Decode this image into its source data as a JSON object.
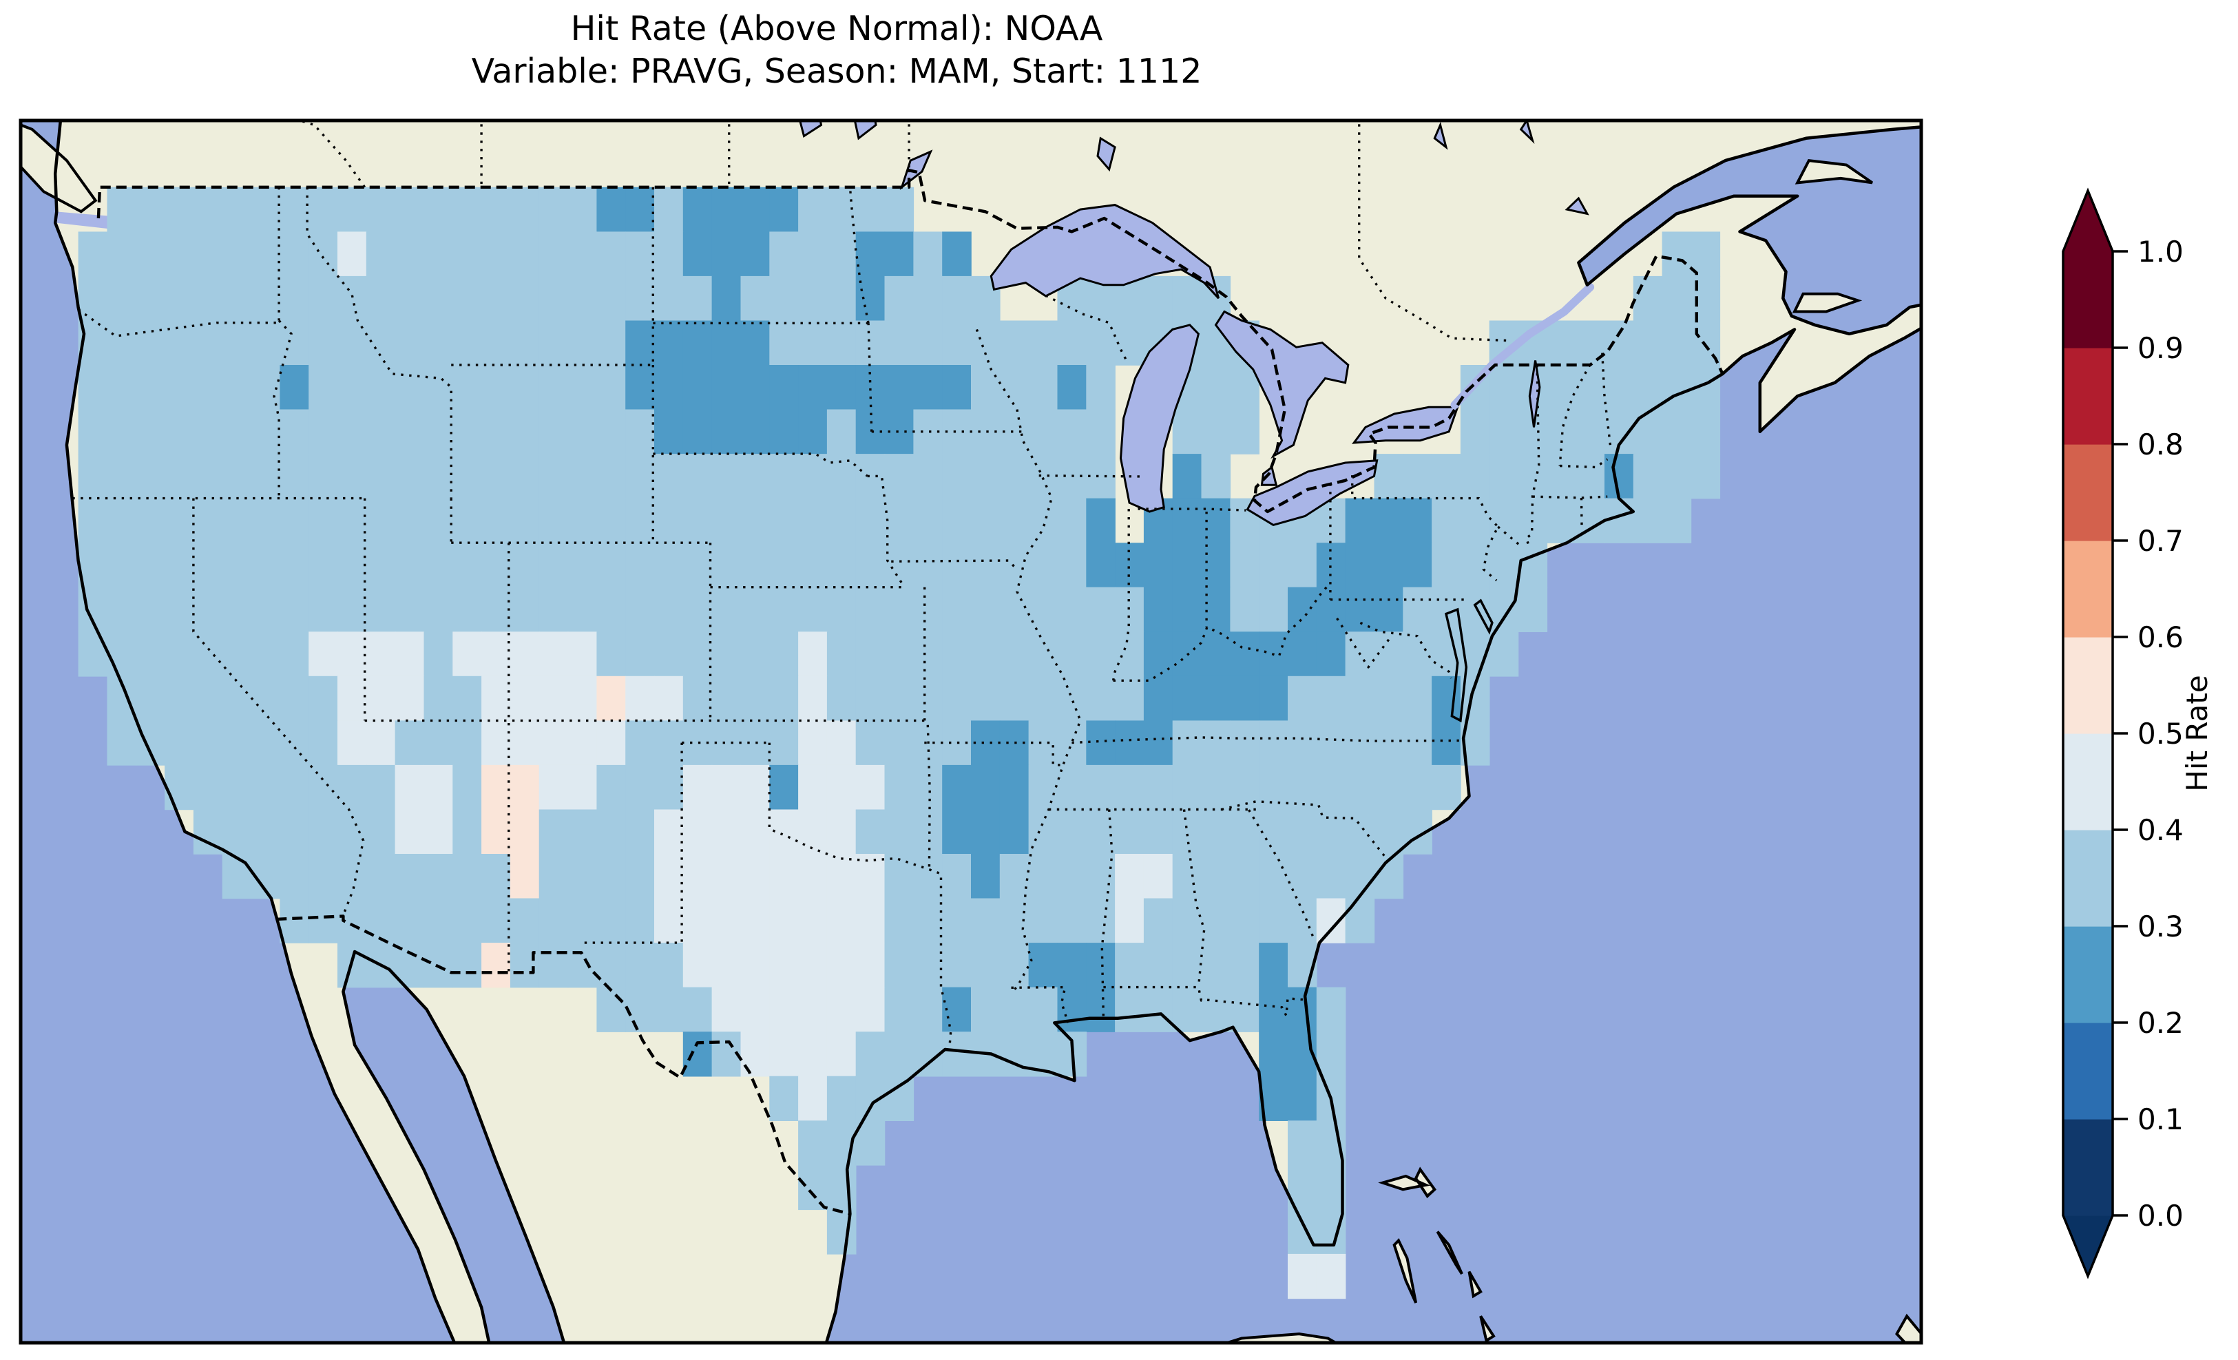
{
  "title": {
    "line1": "Hit Rate (Above Normal): NOAA",
    "line2": "Variable: PRAVG, Season: MAM, Start: 1112"
  },
  "colorbar": {
    "label": "Hit Rate",
    "ticks_top_to_bottom": [
      "1.0",
      "0.9",
      "0.8",
      "0.7",
      "0.6",
      "0.5",
      "0.4",
      "0.3",
      "0.2",
      "0.1",
      "0.0"
    ],
    "bins_low_to_high": [
      {
        "range": "0.0-0.1",
        "color": "#10386b"
      },
      {
        "range": "0.1-0.2",
        "color": "#2b6eb1"
      },
      {
        "range": "0.2-0.3",
        "color": "#4f9bc7"
      },
      {
        "range": "0.3-0.4",
        "color": "#a3cbe1"
      },
      {
        "range": "0.4-0.5",
        "color": "#dfeaf1"
      },
      {
        "range": "0.5-0.6",
        "color": "#fae5d9"
      },
      {
        "range": "0.6-0.7",
        "color": "#f5ab87"
      },
      {
        "range": "0.7-0.8",
        "color": "#d3614d"
      },
      {
        "range": "0.8-0.9",
        "color": "#b11d2e"
      },
      {
        "range": "0.9-1.0",
        "color": "#67001f"
      }
    ],
    "under_arrow_color": "#0a3263",
    "over_arrow_color": "#67001f"
  },
  "map": {
    "ocean_color": "#93a9de",
    "land_color": "#eeeedc",
    "lake_color": "#a9b5e7",
    "coast_color": "#000000",
    "cell_colors": {
      "a": "#a3cbe1",
      "b": "#4f9bc7",
      "c": "#dfeaf1",
      "d": "#fae5d9"
    }
  },
  "chart_data": {
    "type": "heatmap",
    "subtype": "gridded-choropleth-map",
    "title": "Hit Rate (Above Normal): NOAA",
    "subtitle": "Variable: PRAVG, Season: MAM, Start: 1112",
    "region": "Contiguous United States",
    "colorbar_label": "Hit Rate",
    "colorbar_ticks": [
      0.0,
      0.1,
      0.2,
      0.3,
      0.4,
      0.5,
      0.6,
      0.7,
      0.8,
      0.9,
      1.0
    ],
    "value_bins": {
      "0.0-0.1": "#10386b",
      "0.1-0.2": "#2b6eb1",
      "0.2-0.3": "#4f9bc7",
      "0.3-0.4": "#a3cbe1",
      "0.4-0.5": "#dfeaf1",
      "0.5-0.6": "#fae5d9",
      "0.6-0.7": "#f5ab87",
      "0.7-0.8": "#d3614d",
      "0.8-0.9": "#b11d2e",
      "0.9-1.0": "#67001f"
    },
    "grid": {
      "description": "Approximate 1-degree raster of hit-rate bins over CONUS read from the image. Legend: '.'=no data, a=0.3-0.4, b=0.2-0.3, c=0.4-0.5, d=0.5-0.6 (bin midpoints 0.35, 0.25, 0.45, 0.55).",
      "lon_min": -125,
      "lon_max": -66,
      "lat_max": 50,
      "lat_min": 23,
      "cell_deg": 1,
      "legend_values": {
        ".": null,
        "a": 0.35,
        "b": 0.25,
        "c": 0.45,
        "d": 0.55
      },
      "rows_north_to_south": [
        "...........................................................",
        "..aaaaaaaaaaaaaaaaabbabbbbaaaa.............................",
        ".aaaaaaaaacaaaaaaaaaaabbbaaabbab........................aa.",
        ".aaaaaaaaaaaaaaaaaaaaaabaaaabaaaa..aaaaaa..............aaa.",
        ".aaaaaaaaaaaaaaaaaaabbbbbaaaaaaaaaaaaaaaaa........aaaaaaaa.",
        ".aaaaaaabaaaaaaaaaaabbbbbbbbbbbbaaaba..aaa.......aaaaaaaaa.",
        ".aaaaaaaaaaaaaaaaaaaabbbbbbabbaaaaaaa..aaa.......aaaaaaaaa.",
        ".aaaaaaaaaaaaaaaaaaaaaaaaaaaaaaaaaaaa..ba.....aaaaaaaabaaa.",
        ".aaaaaaaaaaaaaaaaaaaaaaaaaaaaaaaaaaab.bbbaaaabbbaaaaaaaaa..",
        ".aaaaaaaaaaaaaaaaaaaaaaaaaaaaaaaaaaabbbbbaaabbbbaaaa.......",
        ".aaaaaaaaaaaaaaaaaaaaaaaaaaaaaaaaaaaaabbbaabbbbaaaaa.......",
        ".aaaaaaaaccccacccccaaaaaaacaaaaaaaaaaabbbbbbbaaaaaa........",
        "..aaaaaaaacccaaccccdccaaaacaaaaaaaaaaabbbbbaaaaaba.........",
        "..aaaaaaaaccaaacccccaaaaaaccaaaabbaabbbaaaaaaaaaba.........",
        "....aaaaaaaaccaddccaaacccbcccaabbbaaaaaaaaaaaaaaa..........",
        ".....aaaaaaaccaddaaaacccccccaaabbbaaaaaaaaaaaaaa...........",
        "......aaaaaaaaaadaaaaccccccccaaabaaaaccaaaaaaaa............",
        "........aaaaaaaaaaaaaccccccccaaaaaaaacaaaaaaca.............",
        "..........aaaaadaaaaaacccccccaaaaabbbaaaaaba...............",
        "...................aaaaccccccaabaaabbaaaaabba..............",
        "......................baccccaaaaaaaa......bba..............",
        ".........................acaaa............bba..............",
        "..........................aaa..............aa..............",
        "..........................aa...............aa..............",
        "...........................a...............aa..............",
        "...........................................cc..............",
        "..........................................................."
      ]
    },
    "layout": {
      "legend_position": "right-vertical-colorbar",
      "colorbar_extend": "both",
      "grid_lines": "off",
      "state_borders": "dotted",
      "country_borders": "dashed",
      "coastlines": "solid"
    }
  }
}
